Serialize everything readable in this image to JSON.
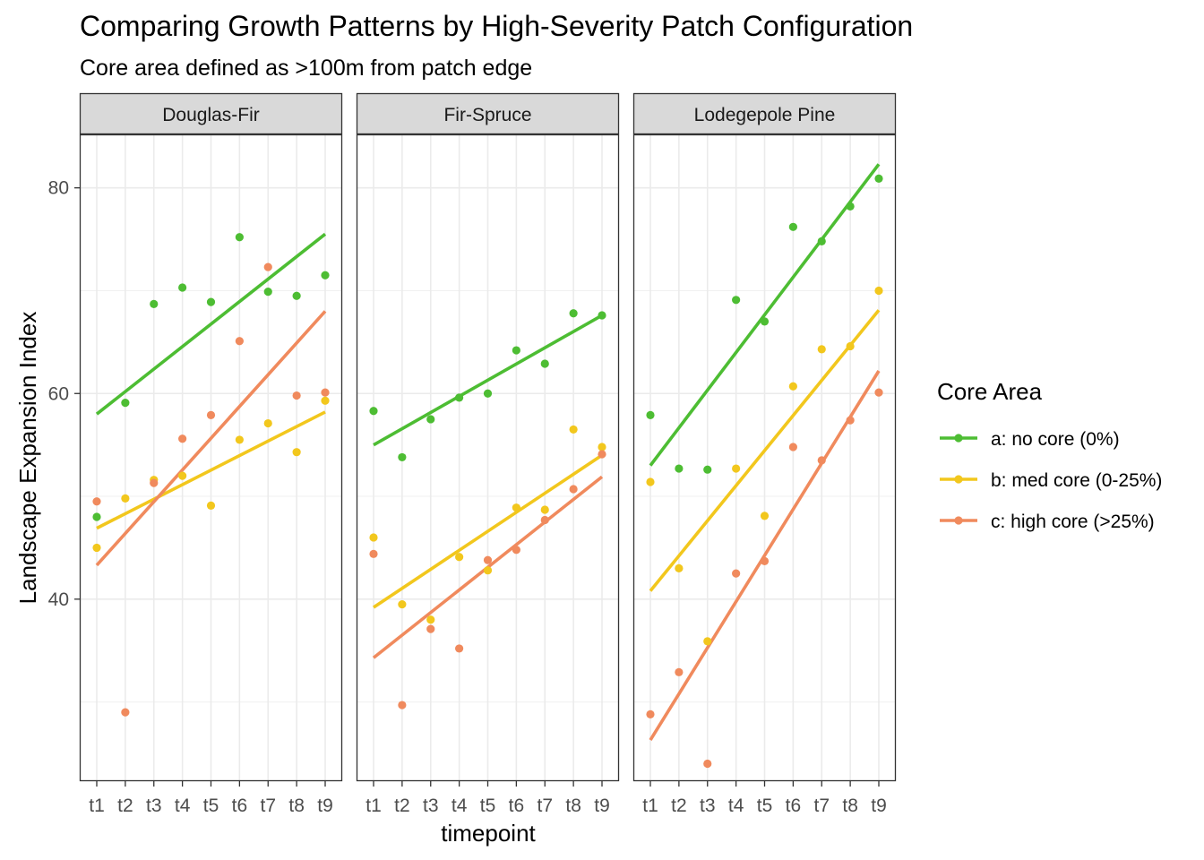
{
  "chart_data": {
    "type": "scatter",
    "title": "Comparing Growth Patterns by High-Severity Patch Configuration",
    "subtitle": "Core area defined as >100m from patch edge",
    "xlabel": "timepoint",
    "ylabel": "Landscape Expansion Index",
    "categories": [
      "t1",
      "t2",
      "t3",
      "t4",
      "t5",
      "t6",
      "t7",
      "t8",
      "t9"
    ],
    "y_ticks": [
      40,
      60,
      80
    ],
    "ylim": [
      22.3,
      85.2
    ],
    "grid": true,
    "legend_title": "Core Area",
    "legend_position": "right",
    "series_meta": [
      {
        "key": "a",
        "name": "a: no core (0%)",
        "color": "#4DBD33"
      },
      {
        "key": "b",
        "name": "b: med core (0-25%)",
        "color": "#F2C71D"
      },
      {
        "key": "c",
        "name": "c: high core (>25%)",
        "color": "#F08A5D"
      }
    ],
    "panels": [
      {
        "name": "Douglas-Fir",
        "series": [
          {
            "key": "a",
            "values": [
              48.0,
              59.1,
              68.7,
              70.3,
              68.9,
              75.2,
              69.9,
              69.5,
              71.5
            ],
            "fit": [
              58.0,
              75.5
            ]
          },
          {
            "key": "b",
            "values": [
              45.0,
              49.8,
              51.6,
              52.0,
              49.1,
              55.5,
              57.1,
              54.3,
              59.3
            ],
            "fit": [
              46.9,
              58.2
            ]
          },
          {
            "key": "c",
            "values": [
              49.5,
              29.0,
              51.3,
              55.6,
              57.9,
              65.1,
              72.3,
              59.8,
              60.1
            ],
            "fit": [
              43.3,
              68.0
            ]
          }
        ]
      },
      {
        "name": "Fir-Spruce",
        "series": [
          {
            "key": "a",
            "values": [
              58.3,
              53.8,
              57.5,
              59.6,
              60.0,
              64.2,
              62.9,
              67.8,
              67.6
            ],
            "fit": [
              55.0,
              67.6
            ]
          },
          {
            "key": "b",
            "values": [
              46.0,
              39.5,
              38.0,
              44.1,
              42.8,
              48.9,
              48.7,
              56.5,
              54.8
            ],
            "fit": [
              39.2,
              54.0
            ]
          },
          {
            "key": "c",
            "values": [
              44.4,
              29.7,
              37.1,
              35.2,
              43.8,
              44.8,
              47.7,
              50.7,
              54.1
            ],
            "fit": [
              34.3,
              51.9
            ]
          }
        ]
      },
      {
        "name": "Lodegepole Pine",
        "series": [
          {
            "key": "a",
            "values": [
              57.9,
              52.7,
              52.6,
              69.1,
              67.0,
              76.2,
              74.8,
              78.2,
              80.9
            ],
            "fit": [
              53.0,
              82.3
            ]
          },
          {
            "key": "b",
            "values": [
              51.4,
              43.0,
              35.9,
              52.7,
              48.1,
              60.7,
              64.3,
              64.6,
              70.0
            ],
            "fit": [
              40.8,
              68.1
            ]
          },
          {
            "key": "c",
            "values": [
              28.8,
              32.9,
              24.0,
              42.5,
              43.7,
              54.8,
              53.5,
              57.4,
              60.1
            ],
            "fit": [
              26.3,
              62.2
            ]
          }
        ]
      }
    ]
  }
}
